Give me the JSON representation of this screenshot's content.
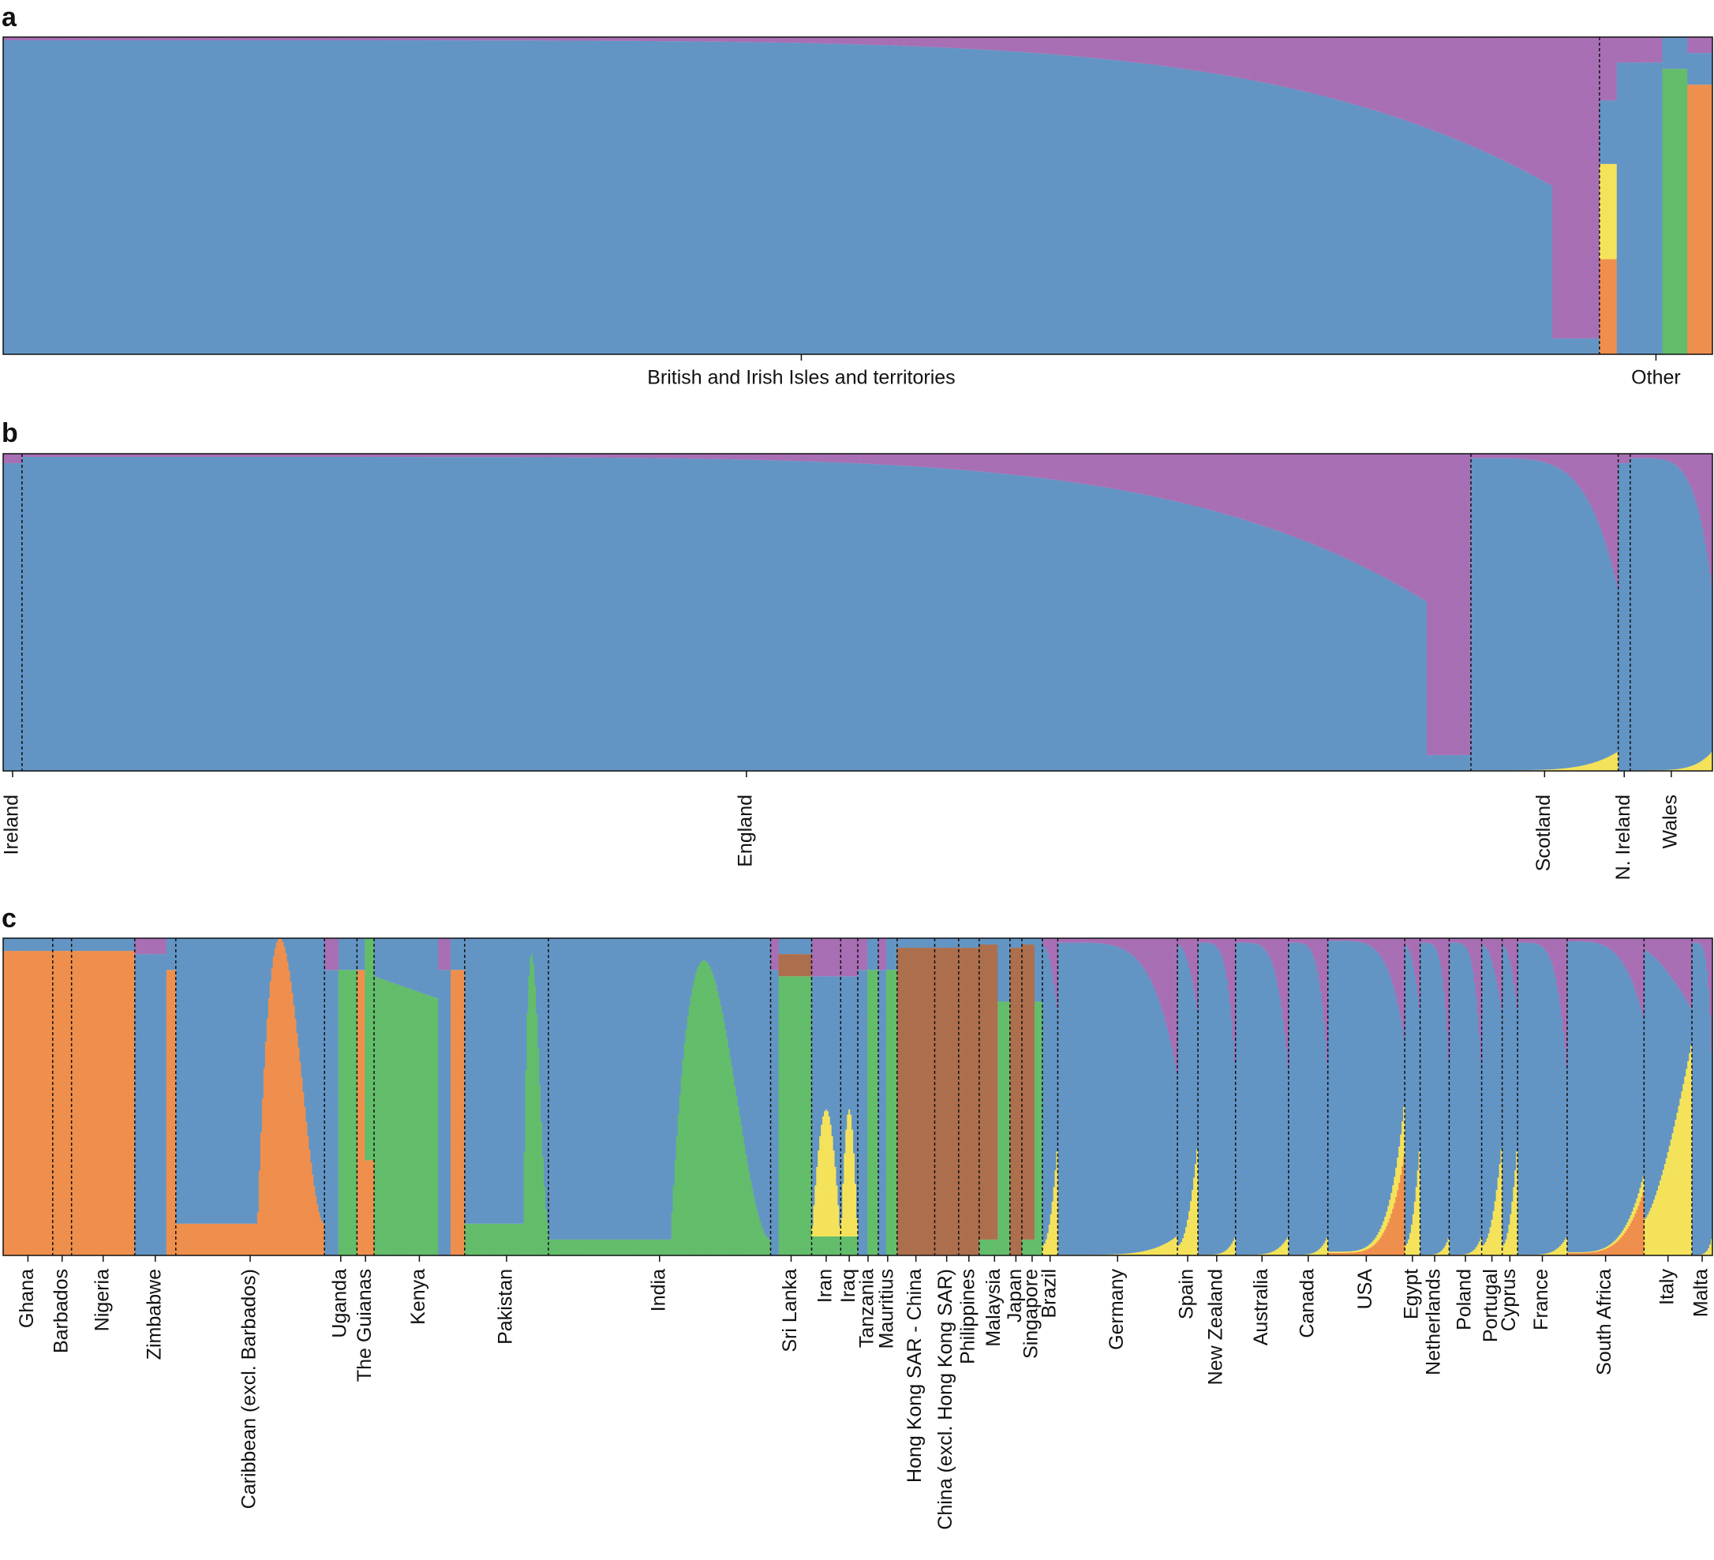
{
  "chart_data": [
    {
      "type": "stacked-bar",
      "panel": "a",
      "description_ylim": [
        0,
        1
      ],
      "colors": {
        "european": "#6395c4",
        "admix": "#a86fb4",
        "african": "#ef8f4d",
        "south_asian": "#63bd6b",
        "east_asian": "#ad6f4d",
        "middle_east": "#f4e35a"
      },
      "groups": [
        {
          "label": "British and Irish Isles and territories",
          "weight": 94.7,
          "profile": "brit"
        },
        {
          "label": "Other",
          "weight": 6.7,
          "profile": "other"
        }
      ]
    },
    {
      "type": "stacked-bar",
      "panel": "b",
      "groups": [
        {
          "label": "Ireland",
          "weight": 1.1,
          "profile": "eu"
        },
        {
          "label": "England",
          "weight": 84.6,
          "profile": "brit"
        },
        {
          "label": "Scotland",
          "weight": 8.6,
          "profile": "euCurve"
        },
        {
          "label": "N. Ireland",
          "weight": 0.7,
          "profile": "eu"
        },
        {
          "label": "Wales",
          "weight": 4.8,
          "profile": "euCurve"
        }
      ]
    },
    {
      "type": "stacked-bar",
      "panel": "c",
      "groups": [
        {
          "label": "Ghana",
          "weight": 2.9,
          "profile": "african"
        },
        {
          "label": "Barbados",
          "weight": 1.1,
          "profile": "african"
        },
        {
          "label": "Nigeria",
          "weight": 3.7,
          "profile": "african"
        },
        {
          "label": "Zimbabwe",
          "weight": 2.4,
          "profile": "zim"
        },
        {
          "label": "Caribbean (excl. Barbados)",
          "weight": 8.7,
          "profile": "caribbean"
        },
        {
          "label": "Uganda",
          "weight": 1.9,
          "profile": "mixAS"
        },
        {
          "label": "The Guianas",
          "weight": 1.0,
          "profile": "mixAf"
        },
        {
          "label": "Kenya",
          "weight": 5.3,
          "profile": "kenya"
        },
        {
          "label": "Pakistan",
          "weight": 4.9,
          "profile": "southAsian"
        },
        {
          "label": "India",
          "weight": 13.0,
          "profile": "india"
        },
        {
          "label": "Sri Lanka",
          "weight": 2.4,
          "profile": "srilanka"
        },
        {
          "label": "Iran",
          "weight": 1.7,
          "profile": "iran"
        },
        {
          "label": "Iraq",
          "weight": 1.0,
          "profile": "iran"
        },
        {
          "label": "Tanzania",
          "weight": 1.2,
          "profile": "mixAS"
        },
        {
          "label": "Mauritius",
          "weight": 1.1,
          "profile": "mixAS"
        },
        {
          "label": "Hong Kong SAR - China",
          "weight": 2.2,
          "profile": "eastAsian"
        },
        {
          "label": "China (excl. Hong Kong SAR)",
          "weight": 1.4,
          "profile": "eastAsian"
        },
        {
          "label": "Philippines",
          "weight": 1.2,
          "profile": "eastAsian"
        },
        {
          "label": "Malaysia",
          "weight": 1.8,
          "profile": "malaysia"
        },
        {
          "label": "Japan",
          "weight": 0.7,
          "profile": "eastAsian"
        },
        {
          "label": "Singapore",
          "weight": 1.2,
          "profile": "malaysia"
        },
        {
          "label": "Brazil",
          "weight": 0.9,
          "profile": "euYellow"
        },
        {
          "label": "Germany",
          "weight": 7.0,
          "profile": "euCurve"
        },
        {
          "label": "Spain",
          "weight": 1.2,
          "profile": "euYellow"
        },
        {
          "label": "New Zealand",
          "weight": 2.2,
          "profile": "euCurve"
        },
        {
          "label": "Australia",
          "weight": 3.1,
          "profile": "euCurve"
        },
        {
          "label": "Canada",
          "weight": 2.3,
          "profile": "euCurve"
        },
        {
          "label": "USA",
          "weight": 4.5,
          "profile": "usa"
        },
        {
          "label": "Egypt",
          "weight": 0.9,
          "profile": "euYellow"
        },
        {
          "label": "Netherlands",
          "weight": 1.7,
          "profile": "euCurve"
        },
        {
          "label": "Poland",
          "weight": 1.9,
          "profile": "euCurve"
        },
        {
          "label": "Portugal",
          "weight": 1.2,
          "profile": "euYellow"
        },
        {
          "label": "Cyprus",
          "weight": 0.9,
          "profile": "euYellow"
        },
        {
          "label": "France",
          "weight": 2.9,
          "profile": "euCurve"
        },
        {
          "label": "South Africa",
          "weight": 4.5,
          "profile": "southAfrica"
        },
        {
          "label": "Italy",
          "weight": 2.8,
          "profile": "italy"
        },
        {
          "label": "Malta",
          "weight": 1.2,
          "profile": "euCurve"
        }
      ]
    }
  ],
  "panels": [
    {
      "letter": "a"
    },
    {
      "letter": "b"
    },
    {
      "letter": "c"
    }
  ]
}
